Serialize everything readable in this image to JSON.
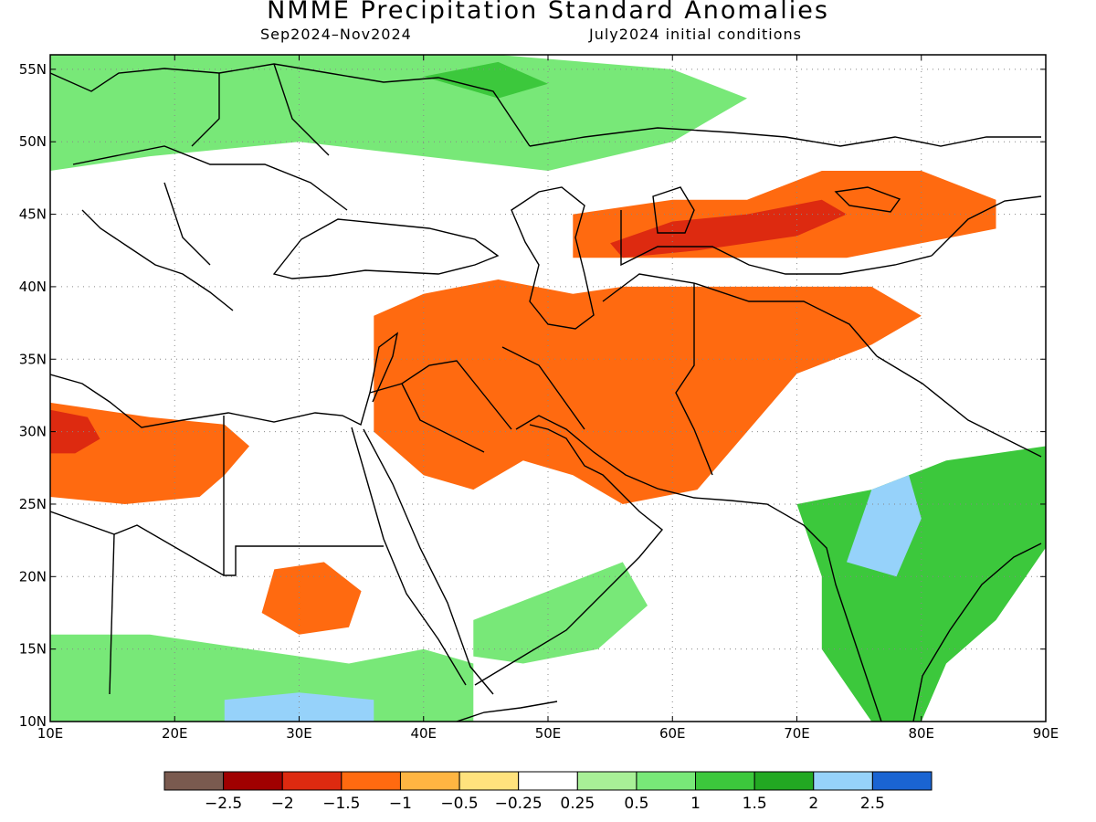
{
  "title": "NMME Precipitation Standard Anomalies",
  "subtitle_left": "Sep2024–Nov2024",
  "subtitle_right": "July2024 initial conditions",
  "map": {
    "lon_range": [
      10,
      90
    ],
    "lat_range": [
      10,
      56
    ],
    "lon_ticks": [
      {
        "v": 10,
        "label": "10E"
      },
      {
        "v": 20,
        "label": "20E"
      },
      {
        "v": 30,
        "label": "30E"
      },
      {
        "v": 40,
        "label": "40E"
      },
      {
        "v": 50,
        "label": "50E"
      },
      {
        "v": 60,
        "label": "60E"
      },
      {
        "v": 70,
        "label": "70E"
      },
      {
        "v": 80,
        "label": "80E"
      },
      {
        "v": 90,
        "label": "90E"
      }
    ],
    "lat_ticks": [
      {
        "v": 10,
        "label": "10N"
      },
      {
        "v": 15,
        "label": "15N"
      },
      {
        "v": 20,
        "label": "20N"
      },
      {
        "v": 25,
        "label": "25N"
      },
      {
        "v": 30,
        "label": "30N"
      },
      {
        "v": 35,
        "label": "35N"
      },
      {
        "v": 40,
        "label": "40N"
      },
      {
        "v": 45,
        "label": "45N"
      },
      {
        "v": 50,
        "label": "50N"
      },
      {
        "v": 55,
        "label": "55N"
      }
    ],
    "grid": "dotted"
  },
  "colorbar": {
    "colors": [
      "#7a5a4f",
      "#a00000",
      "#dd2a10",
      "#ff6a10",
      "#ffb542",
      "#ffe27d",
      "#ffffff",
      "#a8f097",
      "#78e878",
      "#3cc83c",
      "#22a822",
      "#96d2fa",
      "#1a64d2"
    ],
    "labels": [
      "−2.5",
      "−2",
      "−1.5",
      "−1",
      "−0.5",
      "−0.25",
      "0.25",
      "0.5",
      "1",
      "1.5",
      "2",
      "2.5"
    ]
  },
  "anomaly_regions": [
    {
      "level": -1.0,
      "color": "#ff6a10",
      "pts": [
        [
          36,
          38
        ],
        [
          40,
          39.5
        ],
        [
          46,
          40.5
        ],
        [
          52,
          39.5
        ],
        [
          56,
          40
        ],
        [
          62,
          40
        ],
        [
          70,
          40
        ],
        [
          76,
          40
        ],
        [
          80,
          38
        ],
        [
          76,
          36
        ],
        [
          70,
          34
        ],
        [
          66,
          30
        ],
        [
          62,
          26
        ],
        [
          56,
          25
        ],
        [
          52,
          27
        ],
        [
          48,
          28
        ],
        [
          44,
          26
        ],
        [
          40,
          27
        ],
        [
          36,
          30
        ]
      ]
    },
    {
      "level": -1.0,
      "color": "#ff6a10",
      "pts": [
        [
          52,
          45
        ],
        [
          60,
          46
        ],
        [
          66,
          46
        ],
        [
          72,
          48
        ],
        [
          80,
          48
        ],
        [
          86,
          46
        ],
        [
          86,
          44
        ],
        [
          80,
          43
        ],
        [
          74,
          42
        ],
        [
          66,
          42
        ],
        [
          58,
          42
        ],
        [
          52,
          42
        ]
      ]
    },
    {
      "level": -1.5,
      "color": "#dd2a10",
      "pts": [
        [
          55,
          43
        ],
        [
          60,
          44.5
        ],
        [
          66,
          45
        ],
        [
          72,
          46
        ],
        [
          74,
          45
        ],
        [
          70,
          43.5
        ],
        [
          62,
          42.5
        ],
        [
          56,
          42
        ]
      ]
    },
    {
      "level": -1.0,
      "color": "#ff6a10",
      "pts": [
        [
          10,
          32
        ],
        [
          18,
          31
        ],
        [
          24,
          30.5
        ],
        [
          26,
          29
        ],
        [
          24,
          27
        ],
        [
          22,
          25.5
        ],
        [
          16,
          25
        ],
        [
          10,
          25.5
        ]
      ]
    },
    {
      "level": -1.5,
      "color": "#dd2a10",
      "pts": [
        [
          10,
          31.5
        ],
        [
          13,
          31
        ],
        [
          14,
          29.5
        ],
        [
          12,
          28.5
        ],
        [
          10,
          28.5
        ]
      ]
    },
    {
      "level": -1.0,
      "color": "#ff6a10",
      "pts": [
        [
          28,
          20.5
        ],
        [
          32,
          21
        ],
        [
          35,
          19
        ],
        [
          34,
          16.5
        ],
        [
          30,
          16
        ],
        [
          27,
          17.5
        ]
      ]
    },
    {
      "level": 1.5,
      "color": "#3cc83c",
      "pts": [
        [
          70,
          25
        ],
        [
          76,
          26
        ],
        [
          82,
          28
        ],
        [
          90,
          29
        ],
        [
          90,
          22
        ],
        [
          86,
          17
        ],
        [
          82,
          14
        ],
        [
          80,
          10
        ],
        [
          76,
          10
        ],
        [
          72,
          15
        ],
        [
          72,
          20
        ]
      ]
    },
    {
      "level": 2.0,
      "color": "#96d2fa",
      "pts": [
        [
          74,
          21
        ],
        [
          76,
          26
        ],
        [
          79,
          27
        ],
        [
          80,
          24
        ],
        [
          78,
          20
        ]
      ]
    },
    {
      "level": 1.0,
      "color": "#78e878",
      "pts": [
        [
          44,
          17
        ],
        [
          50,
          19
        ],
        [
          56,
          21
        ],
        [
          58,
          18
        ],
        [
          54,
          15
        ],
        [
          48,
          14
        ],
        [
          44,
          14.5
        ]
      ]
    },
    {
      "level": 1.0,
      "color": "#78e878",
      "pts": [
        [
          10,
          16
        ],
        [
          18,
          16
        ],
        [
          26,
          15
        ],
        [
          34,
          14
        ],
        [
          40,
          15
        ],
        [
          44,
          14
        ],
        [
          44,
          10
        ],
        [
          10,
          10
        ]
      ]
    },
    {
      "level": 2.0,
      "color": "#96d2fa",
      "pts": [
        [
          24,
          11.5
        ],
        [
          30,
          12
        ],
        [
          36,
          11.5
        ],
        [
          36,
          10
        ],
        [
          24,
          10
        ]
      ]
    },
    {
      "level": 1.0,
      "color": "#78e878",
      "pts": [
        [
          10,
          56
        ],
        [
          30,
          56
        ],
        [
          46,
          56
        ],
        [
          60,
          55
        ],
        [
          66,
          53
        ],
        [
          60,
          50
        ],
        [
          50,
          48
        ],
        [
          40,
          49
        ],
        [
          30,
          50
        ],
        [
          18,
          49
        ],
        [
          10,
          48
        ]
      ]
    },
    {
      "level": 1.5,
      "color": "#3cc83c",
      "pts": [
        [
          40,
          54.5
        ],
        [
          46,
          55.5
        ],
        [
          50,
          54
        ],
        [
          46,
          53
        ]
      ]
    }
  ]
}
